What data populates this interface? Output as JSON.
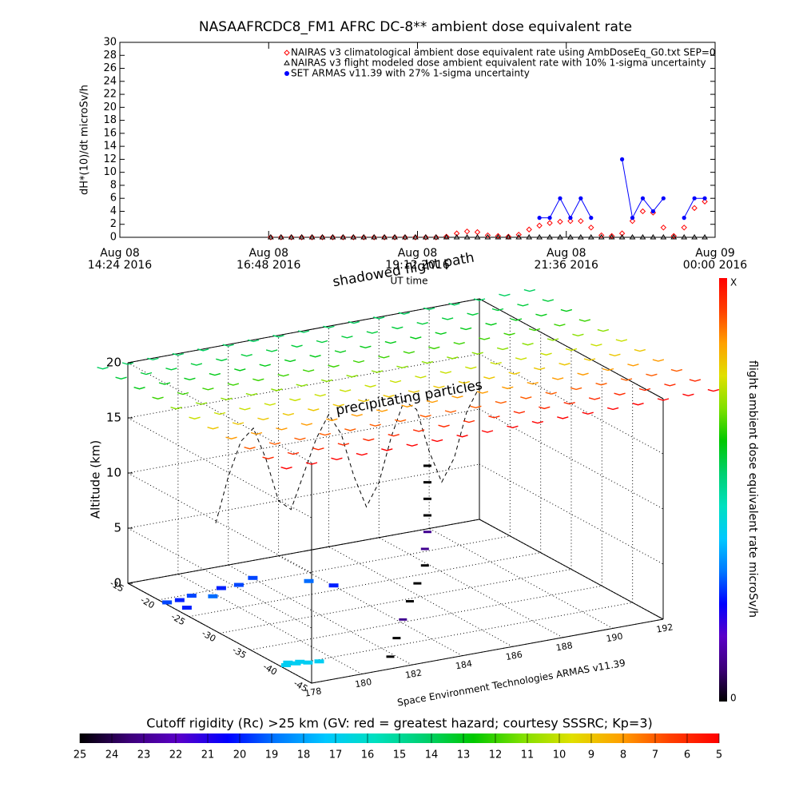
{
  "chart_data": [
    {
      "type": "line",
      "title": "NASAAFRCDC8_FM1 AFRC DC-8** ambient dose equivalent rate",
      "y_label": "dH*(10)/dt microSv/h",
      "x_label": "UT time",
      "x": [
        "2016-08-08T16:50",
        "2016-08-08T17:00",
        "2016-08-08T17:10",
        "2016-08-08T17:20",
        "2016-08-08T17:30",
        "2016-08-08T17:40",
        "2016-08-08T17:50",
        "2016-08-08T18:00",
        "2016-08-08T18:10",
        "2016-08-08T18:20",
        "2016-08-08T18:30",
        "2016-08-08T18:40",
        "2016-08-08T18:50",
        "2016-08-08T19:00",
        "2016-08-08T19:10",
        "2016-08-08T19:20",
        "2016-08-08T19:30",
        "2016-08-08T19:40",
        "2016-08-08T19:50",
        "2016-08-08T20:00",
        "2016-08-08T20:10",
        "2016-08-08T20:20",
        "2016-08-08T20:30",
        "2016-08-08T20:40",
        "2016-08-08T20:50",
        "2016-08-08T21:00",
        "2016-08-08T21:10",
        "2016-08-08T21:20",
        "2016-08-08T21:30",
        "2016-08-08T21:40",
        "2016-08-08T21:50",
        "2016-08-08T22:00",
        "2016-08-08T22:10",
        "2016-08-08T22:20",
        "2016-08-08T22:30",
        "2016-08-08T22:40",
        "2016-08-08T22:50",
        "2016-08-08T23:00",
        "2016-08-08T23:10",
        "2016-08-08T23:20",
        "2016-08-08T23:30",
        "2016-08-08T23:40",
        "2016-08-08T23:50"
      ],
      "series": [
        {
          "name": "NAIRAS v3 climatological ambient dose equivalent rate using AmbDoseEq_G0.txt SEP=0",
          "color": "#ff0000",
          "marker": "diamond",
          "values": [
            0,
            0,
            0,
            0,
            0,
            0,
            0,
            0,
            0,
            0,
            0,
            0,
            0,
            0,
            0,
            0,
            0,
            0.1,
            0.6,
            0.9,
            0.8,
            0.3,
            0.2,
            0.1,
            0.4,
            1.2,
            1.8,
            2.2,
            2.4,
            2.5,
            2.5,
            1.5,
            0.3,
            0.2,
            0.6,
            2.5,
            4.0,
            3.8,
            1.5,
            0.2,
            1.5,
            4.5,
            5.5
          ]
        },
        {
          "name": "NAIRAS v3 flight modeled dose ambient equivalent rate with 10% 1-sigma uncertainty",
          "color": "#000000",
          "marker": "triangle",
          "values": [
            0,
            0,
            0,
            0,
            0,
            0,
            0,
            0,
            0,
            0,
            0,
            0,
            0,
            0,
            0,
            0,
            0,
            0,
            0,
            0,
            0,
            0,
            0,
            0,
            0,
            0,
            0,
            0,
            0,
            0,
            0,
            0,
            0,
            0,
            0,
            0,
            0,
            0,
            0,
            0,
            0,
            0,
            0
          ]
        },
        {
          "name": "SET ARMAS v11.39 with 27% 1-sigma uncertainty",
          "color": "#0000ff",
          "marker": "circle",
          "values": [
            null,
            null,
            null,
            null,
            null,
            null,
            null,
            null,
            null,
            null,
            null,
            null,
            null,
            null,
            null,
            null,
            null,
            null,
            null,
            null,
            null,
            null,
            null,
            null,
            null,
            null,
            3,
            3,
            6,
            3,
            6,
            3,
            null,
            null,
            12,
            3,
            6,
            4,
            6,
            null,
            3,
            6,
            6
          ]
        }
      ],
      "xlim": [
        "2016-08-08T14:24",
        "2016-08-09T00:00"
      ],
      "xticks": [
        {
          "value": "2016-08-08T14:24",
          "label": [
            "Aug 08",
            "14:24 2016"
          ]
        },
        {
          "value": "2016-08-08T16:48",
          "label": [
            "Aug 08",
            "16:48 2016"
          ]
        },
        {
          "value": "2016-08-08T19:12",
          "label": [
            "Aug 08",
            "19:12 2016"
          ]
        },
        {
          "value": "2016-08-08T21:36",
          "label": [
            "Aug 08",
            "21:36 2016"
          ]
        },
        {
          "value": "2016-08-09T00:00",
          "label": [
            "Aug 09",
            "00:00 2016"
          ]
        }
      ],
      "ylim": [
        0,
        30
      ],
      "yticks": [
        0,
        2,
        4,
        6,
        8,
        10,
        12,
        14,
        16,
        18,
        20,
        22,
        24,
        26,
        28,
        30
      ]
    },
    {
      "type": "scatter3d",
      "annotations": [
        "shadowed flight path",
        "precipitating particles"
      ],
      "z_label": "Altitude (km)",
      "credit": "Space Environment Technologies ARMAS v11.39",
      "xlim": [
        178,
        192
      ],
      "xticks": [
        178,
        180,
        182,
        184,
        186,
        188,
        190,
        192
      ],
      "ylim": [
        -45,
        -15
      ],
      "yticks": [
        -15,
        -20,
        -25,
        -30,
        -35,
        -40,
        -45
      ],
      "zlim": [
        0,
        20
      ],
      "zticks": [
        0,
        5,
        10,
        15,
        20
      ],
      "flight": {
        "lon": [
          181.5,
          181.8,
          182.1,
          182.4,
          182.7,
          183,
          183,
          183.1,
          183.1,
          183.1,
          183.1,
          183.1
        ],
        "lat": [
          -43.5,
          -43.3,
          -43.1,
          -43,
          -43,
          -43,
          -43,
          -43,
          -43,
          -43,
          -43,
          -43
        ],
        "alt": [
          0.5,
          2,
          3.5,
          5,
          6.5,
          8,
          9.5,
          11,
          12.5,
          14,
          15.5,
          17
        ],
        "colors": [
          "#000000",
          "#000000",
          "#400090",
          "#000000",
          "#000000",
          "#000000",
          "#400090",
          "#400090",
          "#000000",
          "#000000",
          "#000000",
          "#000000"
        ]
      },
      "ground": {
        "lon": [
          178.2,
          178.6,
          179,
          179.4,
          178.4,
          178.8,
          178.1,
          178.6,
          179.2,
          179.8,
          180.5,
          181.2,
          182,
          178.4,
          183.5,
          184
        ],
        "lat": [
          -40,
          -40,
          -40.3,
          -40.5,
          -39.5,
          -39.8,
          -21,
          -21,
          -20.5,
          -21.5,
          -20,
          -20,
          -19,
          -23,
          -22,
          -24
        ],
        "rigidity": [
          17,
          17,
          17,
          17,
          17,
          17,
          19.5,
          20,
          19.5,
          19,
          20,
          19.5,
          19.5,
          20,
          19,
          20
        ]
      },
      "surface": {
        "alt": 20,
        "lons": [
          177,
          178,
          179,
          180,
          181,
          182,
          183,
          184,
          185,
          186,
          187,
          188,
          189,
          190,
          191,
          192,
          193,
          194
        ],
        "lats": [
          -45,
          -42,
          -39,
          -36,
          -33,
          -30,
          -27,
          -24,
          -21,
          -18,
          -15
        ],
        "rigidity": [
          5,
          6,
          7,
          8,
          9,
          10,
          11,
          12,
          13,
          13.5,
          14
        ]
      },
      "wall_profile": {
        "lat": -15,
        "lon": [
          181.5,
          182,
          182.5,
          183,
          183.5,
          184,
          184.5,
          185,
          185.5,
          186,
          186.5,
          187,
          187.5,
          188,
          188.5,
          189,
          189.5,
          190,
          190.5,
          191,
          191.5,
          192
        ],
        "alt": [
          4,
          8,
          11,
          12,
          9,
          5,
          4,
          7,
          10,
          12,
          10,
          6,
          3,
          5,
          9,
          12,
          11,
          7,
          4,
          6,
          10,
          12
        ]
      }
    },
    {
      "type": "colorbar",
      "label": "flight ambient dose equivalent rate microSv/h",
      "tick_labels": [
        "X",
        "0"
      ]
    },
    {
      "type": "colorbar",
      "title": "Cutoff rigidity (Rc) >25 km (GV: red = greatest hazard; courtesy SSSRC; Kp=3)",
      "xlim": [
        25,
        5
      ],
      "xticks": [
        25,
        24,
        23,
        22,
        21,
        20,
        19,
        18,
        17,
        16,
        15,
        14,
        13,
        12,
        11,
        10,
        9,
        8,
        7,
        6,
        5
      ],
      "colors": [
        "#000000",
        "#3c0078",
        "#5a00c8",
        "#0000ff",
        "#0078ff",
        "#00c8ff",
        "#00e0c0",
        "#00d070",
        "#00c800",
        "#80e000",
        "#e0e000",
        "#ffa000",
        "#ff4000",
        "#ff0000"
      ]
    }
  ]
}
